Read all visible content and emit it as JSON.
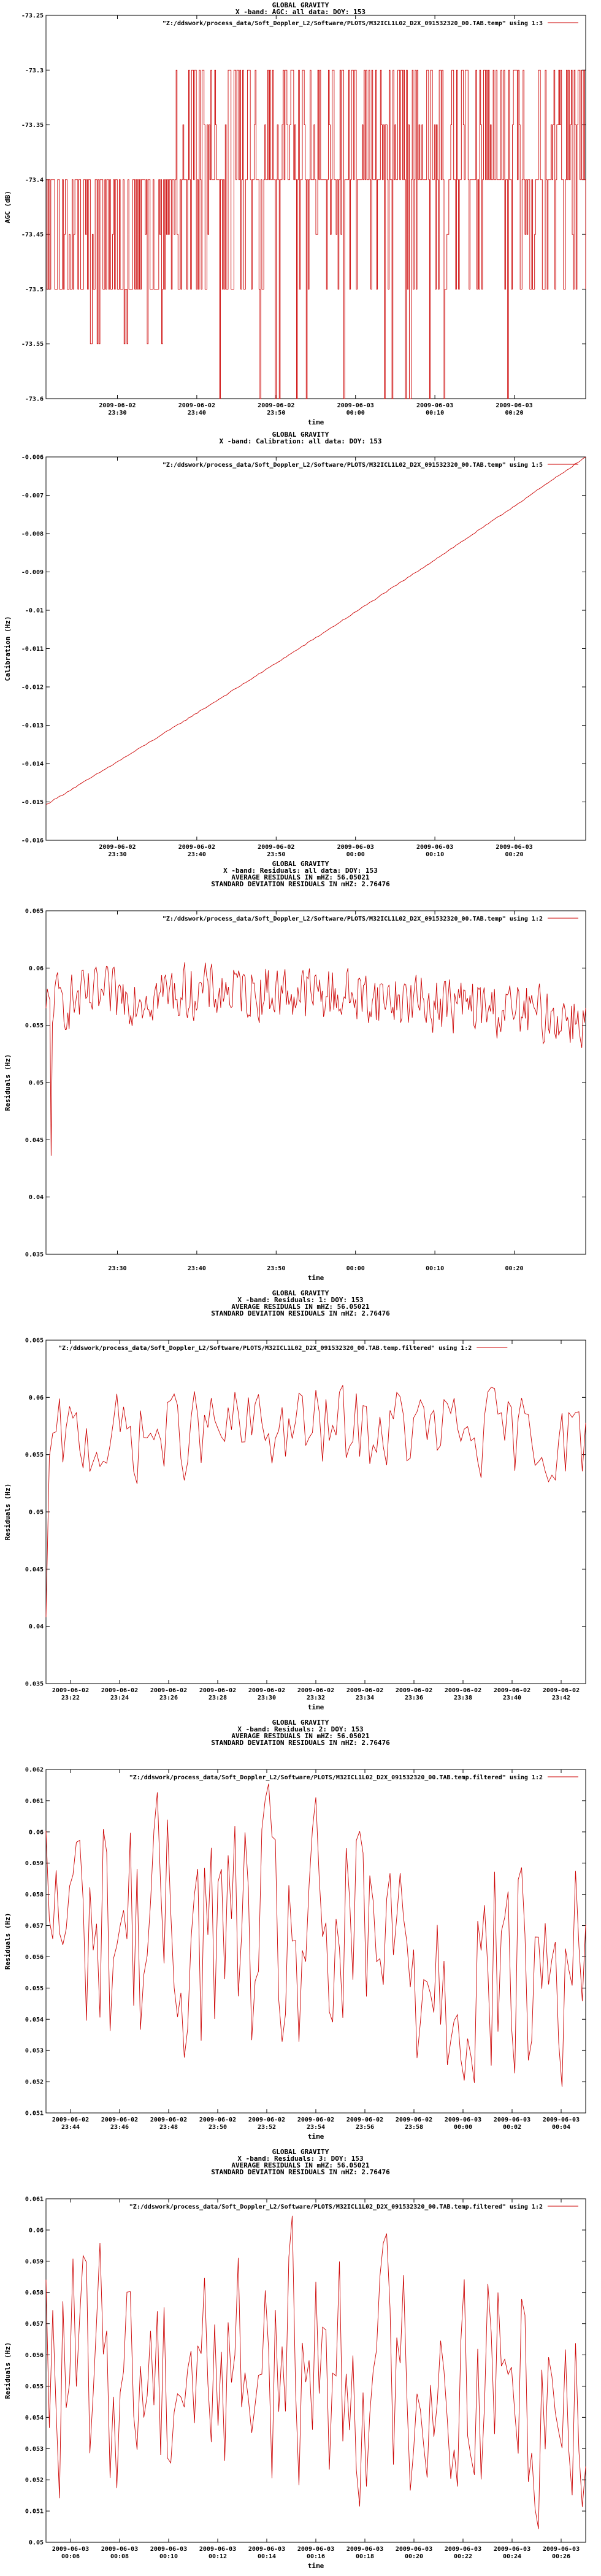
{
  "colors": {
    "series": "#cc0000",
    "axis": "#000000",
    "background": "#ffffff"
  },
  "chart_data": [
    {
      "type": "line",
      "titles": [
        "GLOBAL GRAVITY",
        "X -band: AGC: all data: DOY: 153"
      ],
      "legend": "\"Z:/ddswork/process_data/Soft_Doppler_L2/Software/PLOTS/M32ICL1L02_D2X_091532320_00.TAB.temp\" using 1:3",
      "xlabel": "time",
      "ylabel": "AGC (dB)",
      "yticks": [
        "-73.25",
        "-73.3",
        "-73.35",
        "-73.4",
        "-73.45",
        "-73.5",
        "-73.55",
        "-73.6"
      ],
      "ylim": [
        -73.6,
        -73.25
      ],
      "xlim": [
        "2009-06-02 23:21",
        "2009-06-03 00:29"
      ],
      "xticks": [
        [
          "2009-06-02",
          "23:30"
        ],
        [
          "2009-06-02",
          "23:40"
        ],
        [
          "2009-06-02",
          "23:50"
        ],
        [
          "2009-06-03",
          "00:00"
        ],
        [
          "2009-06-03",
          "00:10"
        ],
        [
          "2009-06-03",
          "00:20"
        ]
      ],
      "pattern": "agc",
      "samples": 560,
      "values_note": "",
      "grid": false,
      "legend_position": "top-right"
    },
    {
      "type": "line",
      "titles": [
        "GLOBAL GRAVITY",
        "X -band: Calibration: all data: DOY: 153"
      ],
      "legend": "\"Z:/ddswork/process_data/Soft_Doppler_L2/Software/PLOTS/M32ICL1L02_D2X_091532320_00.TAB.temp\" using 1:5",
      "xlabel": "time",
      "ylabel": "Calibration (Hz)",
      "yticks": [
        "-0.006",
        "-0.007",
        "-0.008",
        "-0.009",
        "-0.01",
        "-0.011",
        "-0.012",
        "-0.013",
        "-0.014",
        "-0.015",
        "-0.016"
      ],
      "ylim": [
        -0.016,
        -0.006
      ],
      "xlim": [
        "2009-06-02 23:21",
        "2009-06-03 00:29"
      ],
      "xticks": [
        [
          "2009-06-02",
          "23:30"
        ],
        [
          "2009-06-02",
          "23:40"
        ],
        [
          "2009-06-02",
          "23:50"
        ],
        [
          "2009-06-03",
          "00:00"
        ],
        [
          "2009-06-03",
          "00:10"
        ],
        [
          "2009-06-03",
          "00:20"
        ]
      ],
      "pattern": "calib",
      "start_value": -0.01507,
      "end_value": -0.006,
      "grid": false,
      "legend_position": "top-right"
    },
    {
      "type": "line",
      "titles": [
        "GLOBAL GRAVITY",
        "X -band: Residuals: all data: DOY: 153",
        "AVERAGE RESIDUALS IN mHZ: 56.05021",
        "STANDARD DEVIATION RESIDUALS IN mHZ: 2.76476"
      ],
      "legend": "\"Z:/ddswork/process_data/Soft_Doppler_L2/Software/PLOTS/M32ICL1L02_D2X_091532320_00.TAB.temp\" using 1:2",
      "xlabel": "time",
      "ylabel": "Residuals (Hz)",
      "yticks": [
        "0.065",
        "0.06",
        "0.055",
        "0.05",
        "0.045",
        "0.04",
        "0.035"
      ],
      "ylim": [
        0.035,
        0.065
      ],
      "xlim": [
        "2009-06-02 23:21",
        "2009-06-03 00:29"
      ],
      "xticks": [
        [
          "",
          "23:30"
        ],
        [
          "",
          "23:40"
        ],
        [
          "",
          "23:50"
        ],
        [
          "",
          "00:00"
        ],
        [
          "",
          "00:10"
        ],
        [
          "",
          "00:20"
        ]
      ],
      "pattern": "resid",
      "samples": 420,
      "values_note": "",
      "grid": false,
      "legend_position": "top-right"
    },
    {
      "type": "line",
      "titles": [
        "GLOBAL GRAVITY",
        "X -band: Residuals: 1: DOY: 153",
        "AVERAGE RESIDUALS IN mHZ: 56.05021",
        "STANDARD DEVIATION RESIDUALS IN mHZ: 2.76476"
      ],
      "legend": "\"Z:/ddswork/process_data/Soft_Doppler_L2/Software/PLOTS/M32ICL1L02_D2X_091532320_00.TAB.temp.filtered\" using 1:2",
      "xlabel": "time",
      "ylabel": "Residuals (Hz)",
      "yticks": [
        "0.065",
        "0.06",
        "0.055",
        "0.05",
        "0.045",
        "0.04",
        "0.035"
      ],
      "ylim": [
        0.035,
        0.065
      ],
      "xlim": [
        "2009-06-02 23:21",
        "2009-06-02 23:43"
      ],
      "xticks": [
        [
          "2009-06-02",
          "23:22"
        ],
        [
          "2009-06-02",
          "23:24"
        ],
        [
          "2009-06-02",
          "23:26"
        ],
        [
          "2009-06-02",
          "23:28"
        ],
        [
          "2009-06-02",
          "23:30"
        ],
        [
          "2009-06-02",
          "23:32"
        ],
        [
          "2009-06-02",
          "23:34"
        ],
        [
          "2009-06-02",
          "23:36"
        ],
        [
          "2009-06-02",
          "23:38"
        ],
        [
          "2009-06-02",
          "23:40"
        ],
        [
          "2009-06-02",
          "23:42"
        ]
      ],
      "pattern": "resid2",
      "samples": 160,
      "values_note": "",
      "grid": false,
      "legend_position": "top-left"
    },
    {
      "type": "line",
      "titles": [
        "GLOBAL GRAVITY",
        "X -band: Residuals: 2: DOY: 153",
        "AVERAGE RESIDUALS IN mHZ: 56.05021",
        "STANDARD DEVIATION RESIDUALS IN mHZ: 2.76476"
      ],
      "legend": "\"Z:/ddswork/process_data/Soft_Doppler_L2/Software/PLOTS/M32ICL1L02_D2X_091532320_00.TAB.temp.filtered\" using 1:2",
      "xlabel": "time",
      "ylabel": "Residuals (Hz)",
      "yticks": [
        "0.062",
        "0.061",
        "0.06",
        "0.059",
        "0.058",
        "0.057",
        "0.056",
        "0.055",
        "0.054",
        "0.053",
        "0.052",
        "0.051"
      ],
      "ylim": [
        0.051,
        0.062
      ],
      "xlim": [
        "2009-06-02 23:43",
        "2009-06-03 00:06"
      ],
      "xticks": [
        [
          "2009-06-02",
          "23:44"
        ],
        [
          "2009-06-02",
          "23:46"
        ],
        [
          "2009-06-02",
          "23:48"
        ],
        [
          "2009-06-02",
          "23:50"
        ],
        [
          "2009-06-02",
          "23:52"
        ],
        [
          "2009-06-02",
          "23:54"
        ],
        [
          "2009-06-02",
          "23:56"
        ],
        [
          "2009-06-02",
          "23:58"
        ],
        [
          "2009-06-03",
          "00:00"
        ],
        [
          "2009-06-03",
          "00:02"
        ],
        [
          "2009-06-03",
          "00:04"
        ]
      ],
      "pattern": "resid3",
      "samples": 160,
      "values_note": "",
      "grid": false,
      "legend_position": "top-right"
    },
    {
      "type": "line",
      "titles": [
        "GLOBAL GRAVITY",
        "X -band: Residuals: 3: DOY: 153",
        "AVERAGE RESIDUALS IN mHZ: 56.05021",
        "STANDARD DEVIATION RESIDUALS IN mHZ: 2.76476"
      ],
      "legend": "\"Z:/ddswork/process_data/Soft_Doppler_L2/Software/PLOTS/M32ICL1L02_D2X_091532320_00.TAB.temp.filtered\" using 1:2",
      "xlabel": "time",
      "ylabel": "Residuals (Hz)",
      "yticks": [
        "0.061",
        "0.06",
        "0.059",
        "0.058",
        "0.057",
        "0.056",
        "0.055",
        "0.054",
        "0.053",
        "0.052",
        "0.051",
        "0.05"
      ],
      "ylim": [
        0.05,
        0.061
      ],
      "xlim": [
        "2009-06-03 00:05",
        "2009-06-03 00:27"
      ],
      "xticks": [
        [
          "2009-06-03",
          "00:06"
        ],
        [
          "2009-06-03",
          "00:08"
        ],
        [
          "2009-06-03",
          "00:10"
        ],
        [
          "2009-06-03",
          "00:12"
        ],
        [
          "2009-06-03",
          "00:14"
        ],
        [
          "2009-06-03",
          "00:16"
        ],
        [
          "2009-06-03",
          "00:18"
        ],
        [
          "2009-06-03",
          "00:20"
        ],
        [
          "2009-06-03",
          "00:22"
        ],
        [
          "2009-06-03",
          "00:24"
        ],
        [
          "2009-06-03",
          "00:26"
        ]
      ],
      "pattern": "resid4",
      "samples": 160,
      "values_note": "",
      "grid": false,
      "legend_position": "top-right"
    }
  ]
}
